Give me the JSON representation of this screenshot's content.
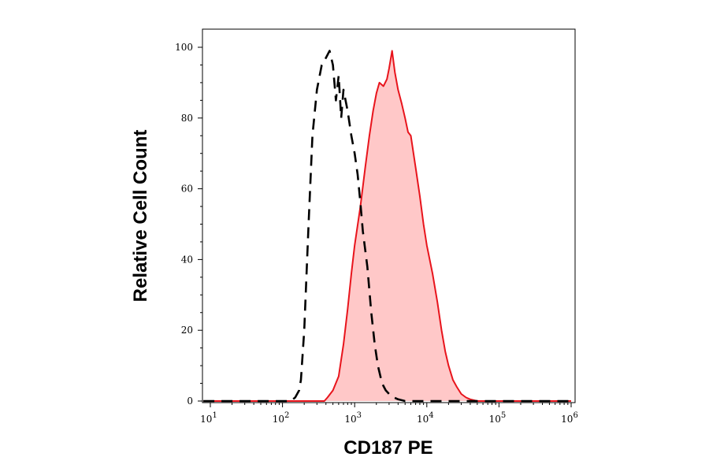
{
  "chart_data": {
    "type": "area",
    "title": "",
    "xlabel": "CD187 PE",
    "ylabel": "Relative Cell Count",
    "x_scale": "log",
    "xlim": [
      10,
      1000000
    ],
    "ylim": [
      0,
      100
    ],
    "x_ticks": [
      {
        "value": 10,
        "base": "10",
        "exp": "1"
      },
      {
        "value": 100,
        "base": "10",
        "exp": "2"
      },
      {
        "value": 1000,
        "base": "10",
        "exp": "3"
      },
      {
        "value": 10000,
        "base": "10",
        "exp": "4"
      },
      {
        "value": 100000,
        "base": "10",
        "exp": "5"
      },
      {
        "value": 1000000,
        "base": "10",
        "exp": "6"
      }
    ],
    "y_ticks": [
      0,
      20,
      40,
      60,
      80,
      100
    ],
    "grid": false,
    "legend": "none",
    "series": [
      {
        "style": "dashed",
        "color": "#000000",
        "fill": "none",
        "x": [
          8,
          130,
          150,
          170,
          180,
          200,
          230,
          260,
          300,
          350,
          400,
          450,
          500,
          550,
          600,
          650,
          700,
          800,
          900,
          1000,
          1100,
          1200,
          1300,
          1500,
          1700,
          1900,
          2100,
          2400,
          2700,
          3000,
          3500,
          4000,
          5000,
          6000,
          1000000
        ],
        "y": [
          0,
          0,
          1,
          3,
          6,
          20,
          50,
          75,
          88,
          95,
          97,
          99,
          95,
          85,
          92,
          80,
          88,
          82,
          75,
          70,
          64,
          56,
          48,
          38,
          25,
          16,
          10,
          5,
          3,
          2,
          1,
          0.5,
          0,
          0,
          0
        ]
      },
      {
        "style": "solid",
        "color": "#e8141c",
        "fill": "#ffc8c8",
        "x": [
          8,
          380,
          420,
          500,
          600,
          700,
          800,
          900,
          1000,
          1200,
          1400,
          1600,
          1800,
          2000,
          2200,
          2500,
          2800,
          3000,
          3300,
          3600,
          4000,
          4500,
          5000,
          5500,
          6000,
          7000,
          8000,
          9000,
          10000,
          12000,
          14000,
          16000,
          18000,
          20000,
          23000,
          26000,
          30000,
          35000,
          40000,
          50000,
          1000000
        ],
        "y": [
          0,
          0,
          1,
          3,
          7,
          16,
          26,
          36,
          44,
          55,
          66,
          75,
          82,
          87,
          90,
          89,
          91,
          94,
          99,
          93,
          88,
          84,
          80,
          76,
          75,
          66,
          58,
          50,
          44,
          36,
          28,
          20,
          14,
          10,
          6,
          4,
          2,
          1,
          0.5,
          0,
          0
        ]
      }
    ]
  }
}
